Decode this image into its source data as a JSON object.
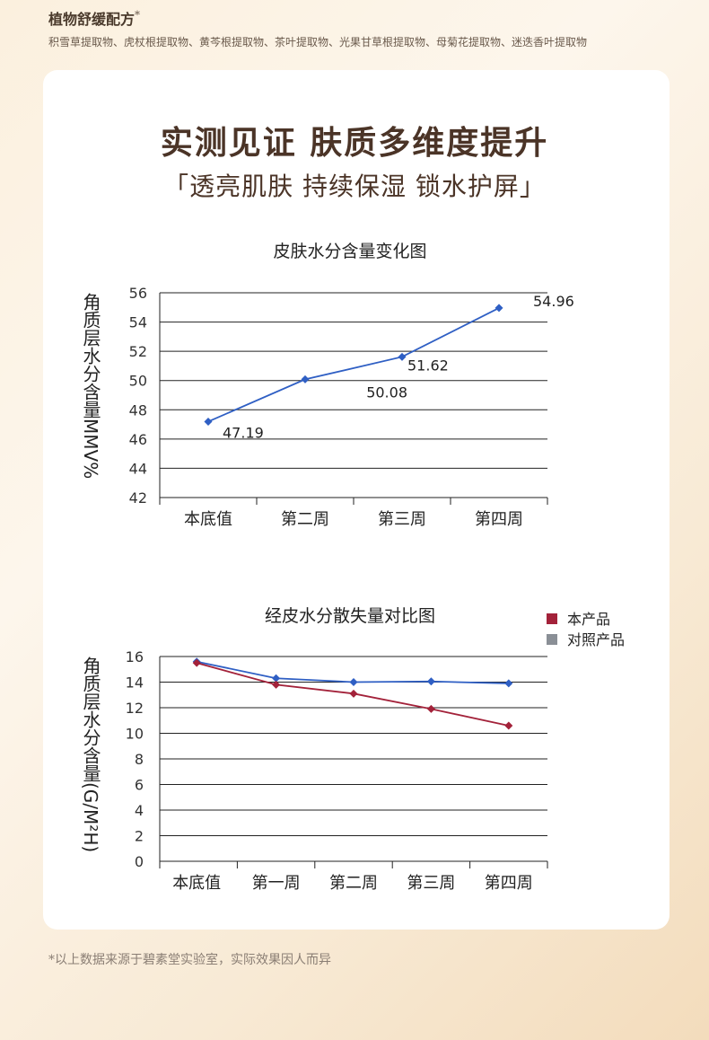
{
  "header": {
    "title": "植物舒缓配方",
    "title_mark": "*",
    "subtitle": "积雪草提取物、虎杖根提取物、黄芩根提取物、茶叶提取物、光果甘草根提取物、母菊花提取物、迷迭香叶提取物"
  },
  "main": {
    "title": "实测见证 肤质多维度提升",
    "subtitle": "「透亮肌肤 持续保湿 锁水护屏」"
  },
  "footnote": "*以上数据来源于碧素堂实验室，实际效果因人而异",
  "colors": {
    "series_blue": "#2f5fc4",
    "series_red": "#a3223a",
    "legend_gray": "#8a8f96",
    "title_brown": "#4b3427"
  },
  "chart_data": [
    {
      "type": "line",
      "title": "皮肤水分含量变化图",
      "ylabel": "角质层水分含量MMV%",
      "categories": [
        "本底值",
        "第二周",
        "第三周",
        "第四周"
      ],
      "ylim": [
        42,
        56
      ],
      "yticks": [
        42,
        44,
        46,
        48,
        50,
        52,
        54,
        56
      ],
      "grid": true,
      "series": [
        {
          "values": [
            47.19,
            50.08,
            51.62,
            54.96
          ],
          "data_labels": [
            "47.19",
            "50.08",
            "51.62",
            "54.96"
          ]
        }
      ]
    },
    {
      "type": "line",
      "title": "经皮水分散失量对比图",
      "ylabel": "角质层水分含量(G/M²H)",
      "categories": [
        "本底值",
        "第一周",
        "第二周",
        "第三周",
        "第四周"
      ],
      "ylim": [
        0,
        16
      ],
      "yticks": [
        0,
        2,
        4,
        6,
        8,
        10,
        12,
        14,
        16
      ],
      "grid": true,
      "legend": "top-right",
      "series": [
        {
          "name": "对照产品",
          "values": [
            15.6,
            14.3,
            14.0,
            14.05,
            13.9
          ]
        },
        {
          "name": "本产品",
          "values": [
            15.5,
            13.8,
            13.1,
            11.9,
            10.6
          ]
        }
      ],
      "legend_entries": [
        "本产品",
        "对照产品"
      ]
    }
  ]
}
